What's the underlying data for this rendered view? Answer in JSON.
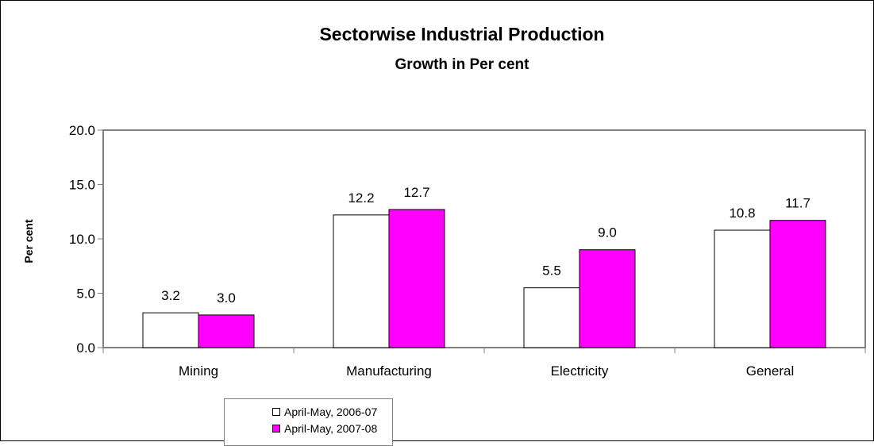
{
  "chart_data": {
    "type": "bar",
    "title": "Sectorwise Industrial Production",
    "subtitle": "Growth in Per cent",
    "xlabel": "",
    "ylabel": "Per cent",
    "categories": [
      "Mining",
      "Manufacturing",
      "Electricity",
      "General"
    ],
    "series": [
      {
        "name": "April-May, 2006-07",
        "values": [
          3.2,
          12.2,
          5.5,
          10.8
        ],
        "color": "#FFFFFF"
      },
      {
        "name": "April-May, 2007-08",
        "values": [
          3.0,
          12.7,
          9.0,
          11.7
        ],
        "color": "#FF00FF"
      }
    ],
    "ylim": [
      0,
      20
    ],
    "yticks": [
      "0.0",
      "5.0",
      "10.0",
      "15.0",
      "20.0"
    ],
    "value_labels": [
      [
        "3.2",
        "12.2",
        "5.5",
        "10.8"
      ],
      [
        "3.0",
        "12.7",
        "9.0",
        "11.7"
      ]
    ],
    "grid": false,
    "legend_position": "bottom-left",
    "bar_outline_color": "#000000",
    "axis_color": "#808080"
  }
}
